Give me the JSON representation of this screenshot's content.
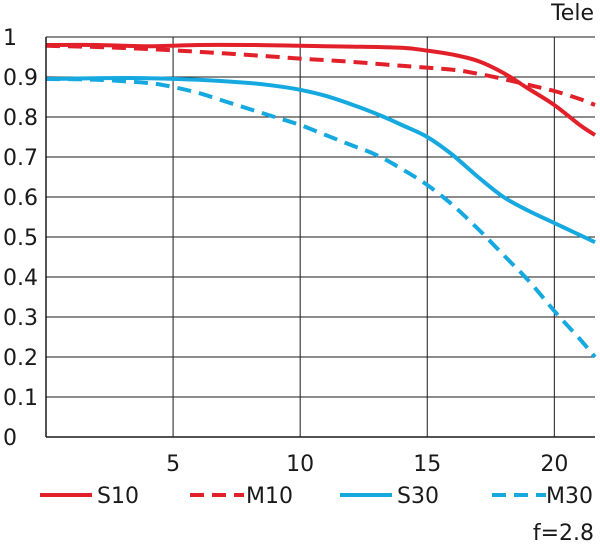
{
  "chart_data": {
    "type": "line",
    "title": "",
    "mode_label": "Tele",
    "aperture_label": "f=2.8",
    "xlabel": "",
    "ylabel": "",
    "xlim": [
      0,
      21.6
    ],
    "ylim": [
      0,
      1
    ],
    "x_ticks": [
      5,
      10,
      15,
      20
    ],
    "x_tick_labels": [
      "5",
      "10",
      "15",
      "20"
    ],
    "y_ticks": [
      0,
      0.1,
      0.2,
      0.3,
      0.4,
      0.5,
      0.6,
      0.7,
      0.8,
      0.9,
      1
    ],
    "y_tick_labels": [
      "0",
      "0.1",
      "0.2",
      "0.3",
      "0.4",
      "0.5",
      "0.6",
      "0.7",
      "0.8",
      "0.9",
      "1"
    ],
    "grid": true,
    "legend_position": "bottom",
    "series": [
      {
        "name": "S10",
        "color": "#e2202a",
        "dash": "solid",
        "x": [
          0,
          2,
          4,
          6,
          8,
          10,
          12,
          14,
          15,
          16,
          17,
          18,
          19,
          20,
          21,
          21.6
        ],
        "y": [
          0.98,
          0.98,
          0.977,
          0.98,
          0.98,
          0.978,
          0.976,
          0.973,
          0.966,
          0.956,
          0.94,
          0.91,
          0.87,
          0.83,
          0.78,
          0.755
        ]
      },
      {
        "name": "M10",
        "color": "#e2202a",
        "dash": "dashed",
        "x": [
          0,
          2,
          4,
          6,
          8,
          10,
          12,
          14,
          16,
          17,
          18,
          19,
          20,
          21,
          21.6
        ],
        "y": [
          0.978,
          0.975,
          0.97,
          0.963,
          0.955,
          0.946,
          0.938,
          0.928,
          0.918,
          0.908,
          0.895,
          0.88,
          0.865,
          0.845,
          0.83
        ]
      },
      {
        "name": "S30",
        "color": "#15a9e0",
        "dash": "solid",
        "x": [
          0,
          2,
          4,
          6,
          8,
          9,
          10,
          11,
          12,
          13,
          14,
          15,
          16,
          17,
          18,
          19,
          20,
          21,
          21.6
        ],
        "y": [
          0.895,
          0.897,
          0.897,
          0.893,
          0.885,
          0.878,
          0.868,
          0.853,
          0.832,
          0.808,
          0.78,
          0.75,
          0.705,
          0.65,
          0.6,
          0.565,
          0.535,
          0.505,
          0.487
        ]
      },
      {
        "name": "M30",
        "color": "#15a9e0",
        "dash": "dashed",
        "x": [
          0,
          2,
          4,
          5,
          6,
          7,
          8,
          9,
          10,
          11,
          12,
          13,
          14,
          15,
          16,
          17,
          18,
          19,
          20,
          21,
          21.6
        ],
        "y": [
          0.895,
          0.893,
          0.885,
          0.875,
          0.86,
          0.84,
          0.82,
          0.8,
          0.78,
          0.755,
          0.73,
          0.705,
          0.67,
          0.63,
          0.58,
          0.52,
          0.455,
          0.39,
          0.315,
          0.245,
          0.2
        ]
      }
    ]
  }
}
